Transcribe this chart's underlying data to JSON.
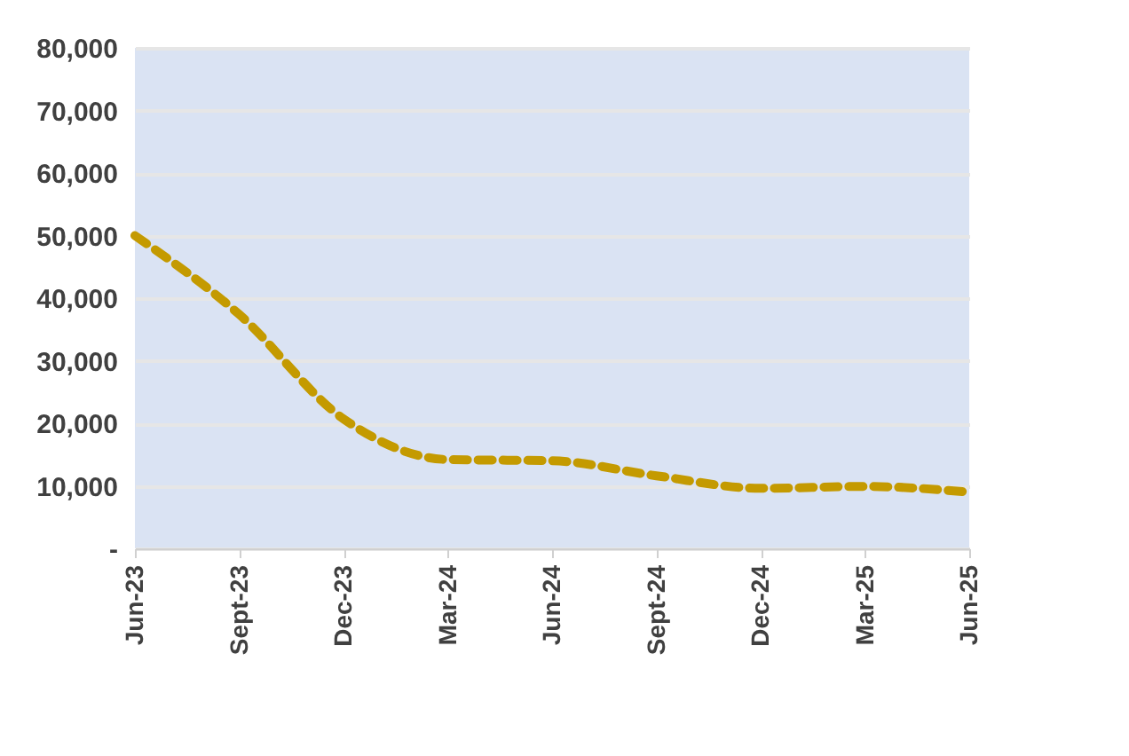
{
  "chart_data": {
    "type": "line",
    "categories": [
      "Jun-23",
      "Sept-23",
      "Dec-23",
      "Mar-24",
      "Jun-24",
      "Sept-24",
      "Dec-24",
      "Mar-25",
      "Jun-25"
    ],
    "series": [
      {
        "color": "#c49a00",
        "values": [
          50000,
          37400,
          20700,
          14200,
          14000,
          11600,
          9600,
          9900,
          9000
        ]
      }
    ],
    "ylim": [
      0,
      80000
    ],
    "yticks": [
      {
        "value": 0,
        "label": "-"
      },
      {
        "value": 10000,
        "label": "10,000"
      },
      {
        "value": 20000,
        "label": "20,000"
      },
      {
        "value": 30000,
        "label": "30,000"
      },
      {
        "value": 40000,
        "label": "40,000"
      },
      {
        "value": 50000,
        "label": "50,000"
      },
      {
        "value": 60000,
        "label": "60,000"
      },
      {
        "value": 70000,
        "label": "70,000"
      },
      {
        "value": 80000,
        "label": "80,000"
      }
    ],
    "grid": "y",
    "marker": "none",
    "line_style": "dashed"
  }
}
